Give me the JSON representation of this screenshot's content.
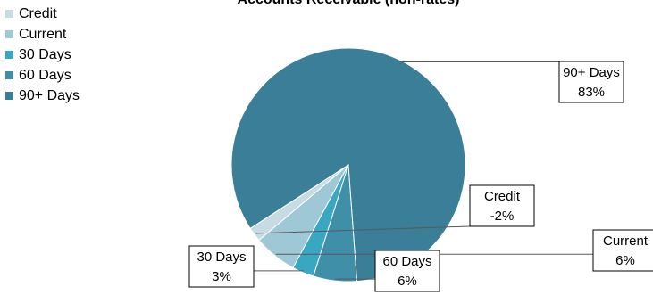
{
  "chart_data": {
    "type": "pie",
    "title": "Accounts Receivable (non-rates)",
    "legend_position": "left",
    "slices": [
      {
        "name": "Credit",
        "label": "Credit",
        "percent_label": "-2%",
        "value": 2,
        "color": "#c7dbe3"
      },
      {
        "name": "Current",
        "label": "Current",
        "percent_label": "6%",
        "value": 6,
        "color": "#9fc8d6"
      },
      {
        "name": "30 Days",
        "label": "30 Days",
        "percent_label": "3%",
        "value": 3,
        "color": "#3aa7c2"
      },
      {
        "name": "60 Days",
        "label": "60 Days",
        "percent_label": "6%",
        "value": 6,
        "color": "#3f8fa8"
      },
      {
        "name": "90+ Days",
        "label": "90+ Days",
        "percent_label": "83%",
        "value": 83,
        "color": "#3a7f97"
      }
    ]
  }
}
